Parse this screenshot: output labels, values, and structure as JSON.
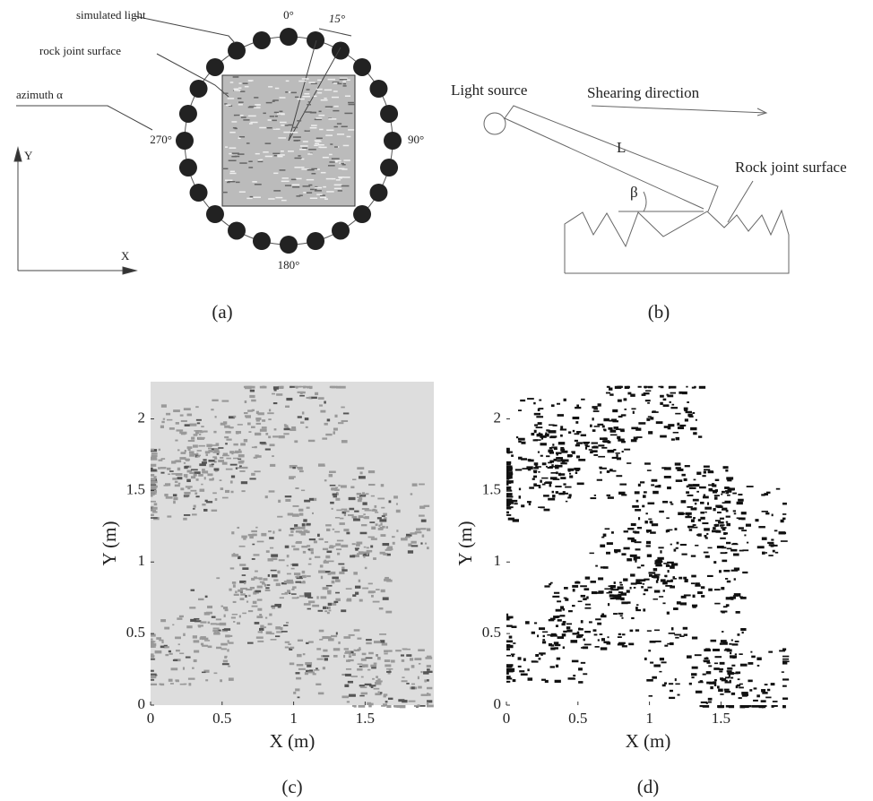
{
  "panel_a": {
    "simulated_light": "simulated light",
    "rock_joint_surface": "rock joint surface",
    "azimuth": "azimuth α",
    "angle_0": "0°",
    "angle_15": "15°",
    "angle_90": "90°",
    "angle_180": "180°",
    "angle_270": "270°",
    "axis_y": "Y",
    "axis_x": "X",
    "caption": "(a)"
  },
  "panel_b": {
    "light_source": "Light source",
    "shearing_direction": "Shearing direction",
    "length": "L",
    "angle": "β",
    "rock_joint_surface": "Rock joint surface",
    "caption": "(b)"
  },
  "panel_c": {
    "xlim": [
      0,
      1.98
    ],
    "ylim": [
      0,
      2.26
    ],
    "xticks": [
      0,
      0.5,
      1,
      1.5
    ],
    "yticks": [
      0,
      0.5,
      1,
      1.5,
      2
    ],
    "xlabel": "X (m)",
    "ylabel": "Y (m)",
    "caption": "(c)"
  },
  "panel_d": {
    "xlim": [
      0,
      1.98
    ],
    "ylim": [
      0,
      2.26
    ],
    "xticks": [
      0,
      0.5,
      1,
      1.5
    ],
    "yticks": [
      0,
      0.5,
      1,
      1.5,
      2
    ],
    "xlabel": "X (m)",
    "ylabel": "Y (m)",
    "caption": "(d)"
  }
}
